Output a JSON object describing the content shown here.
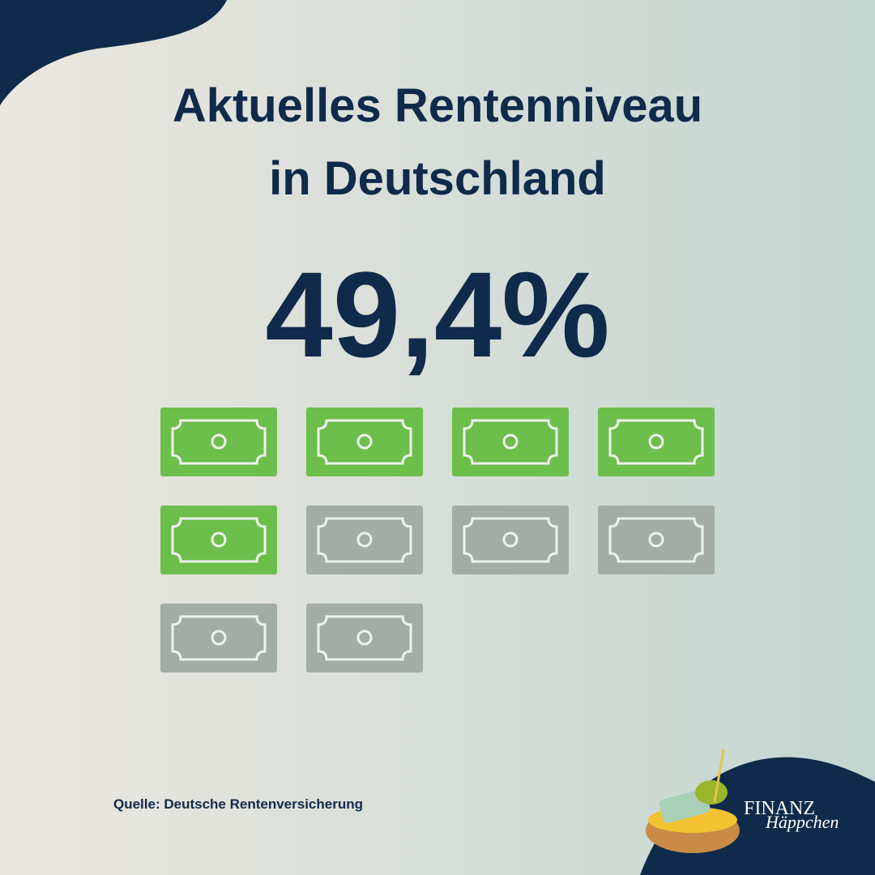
{
  "title_line1": "Aktuelles Rentenniveau",
  "title_line2": "in Deutschland",
  "value": "49,4%",
  "icons": {
    "filled": 5,
    "total": 10,
    "filled_color": "#6cbf4a",
    "empty_color": "#a3ada6"
  },
  "source": "Quelle: Deutsche Rentenversicherung",
  "logo": {
    "line1": "FINANZ",
    "line2": "Häppchen"
  }
}
